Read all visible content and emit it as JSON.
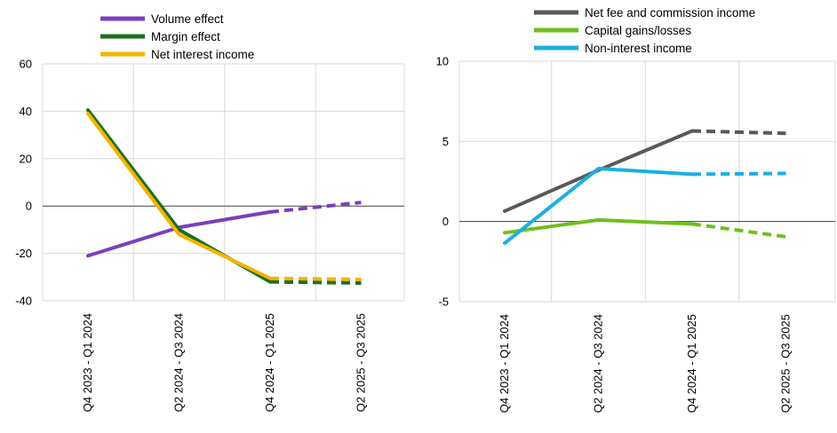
{
  "chart_data": [
    {
      "type": "line",
      "categories": [
        "Q4 2023 - Q1 2024",
        "Q2 2024 - Q3 2024",
        "Q4 2024 - Q1 2025",
        "Q2 2025 - Q3 2025"
      ],
      "ylim": [
        -40,
        60
      ],
      "yticks": [
        -40,
        -20,
        0,
        20,
        40,
        60
      ],
      "grid": true,
      "legend": "top-left",
      "projection_from_index": 2,
      "series": [
        {
          "name": "Volume effect",
          "color": "#7b3fbf",
          "values": [
            -21,
            -9,
            -2.5,
            1.5
          ]
        },
        {
          "name": "Margin effect",
          "color": "#1e6e1e",
          "values": [
            40.5,
            -10,
            -32,
            -32.5
          ]
        },
        {
          "name": "Net interest income",
          "color": "#f5b400",
          "values": [
            39,
            -12,
            -30.5,
            -31
          ]
        }
      ]
    },
    {
      "type": "line",
      "categories": [
        "Q4 2023 - Q1 2024",
        "Q2 2024 - Q3 2024",
        "Q4 2024 - Q1 2025",
        "Q2 2025 - Q3 2025"
      ],
      "ylim": [
        -5,
        10
      ],
      "yticks": [
        -5,
        0,
        5,
        10
      ],
      "grid": true,
      "legend": "top-left",
      "projection_from_index": 2,
      "series": [
        {
          "name": "Net fee and commission income",
          "color": "#595959",
          "values": [
            0.65,
            3.2,
            5.65,
            5.5
          ]
        },
        {
          "name": "Capital gains/losses",
          "color": "#6fbf1e",
          "values": [
            -0.7,
            0.1,
            -0.15,
            -0.95
          ]
        },
        {
          "name": "Non-interest income",
          "color": "#1ab0e0",
          "values": [
            -1.35,
            3.3,
            2.95,
            3.0
          ]
        }
      ]
    }
  ]
}
